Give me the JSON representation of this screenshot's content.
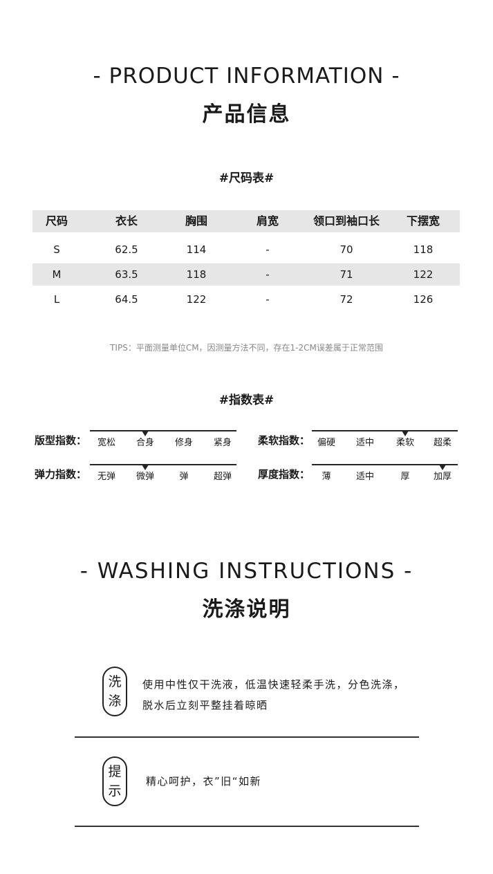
{
  "product": {
    "title_en": "- PRODUCT INFORMATION -",
    "title_cn": "产品信息"
  },
  "size_table": {
    "title": "#尺码表#",
    "headers": [
      "尺码",
      "衣长",
      "胸围",
      "肩宽",
      "领口到袖口长",
      "下摆宽"
    ],
    "rows": [
      [
        "S",
        "62.5",
        "114",
        "-",
        "70",
        "118"
      ],
      [
        "M",
        "63.5",
        "118",
        "-",
        "71",
        "122"
      ],
      [
        "L",
        "64.5",
        "122",
        "-",
        "72",
        "126"
      ]
    ],
    "tips": "TIPS：平面测量单位CM，因测量方法不同，存在1-2CM误差属于正常范围"
  },
  "index_table": {
    "title": "#指数表#",
    "items": [
      {
        "label": "版型指数：",
        "options": [
          "宽松",
          "合身",
          "修身",
          "紧身"
        ],
        "selected": 1
      },
      {
        "label": "柔软指数：",
        "options": [
          "偏硬",
          "适中",
          "柔软",
          "超柔"
        ],
        "selected": 2
      },
      {
        "label": "弹力指数：",
        "options": [
          "无弹",
          "微弹",
          "弹",
          "超弹"
        ],
        "selected": 1
      },
      {
        "label": "厚度指数：",
        "options": [
          "薄",
          "适中",
          "厚",
          "加厚"
        ],
        "selected": 3
      }
    ]
  },
  "washing": {
    "title_en": "- WASHING INSTRUCTIONS -",
    "title_cn": "洗涤说明",
    "blocks": [
      {
        "badge": [
          "洗",
          "涤"
        ],
        "lines": [
          "使用中性仅干洗液，低温快速轻柔手洗，分色洗涤，",
          "脱水后立刻平整挂着晾晒"
        ]
      },
      {
        "badge": [
          "提",
          "示"
        ],
        "lines": [
          "精心呵护，衣”旧“如新"
        ]
      }
    ]
  }
}
